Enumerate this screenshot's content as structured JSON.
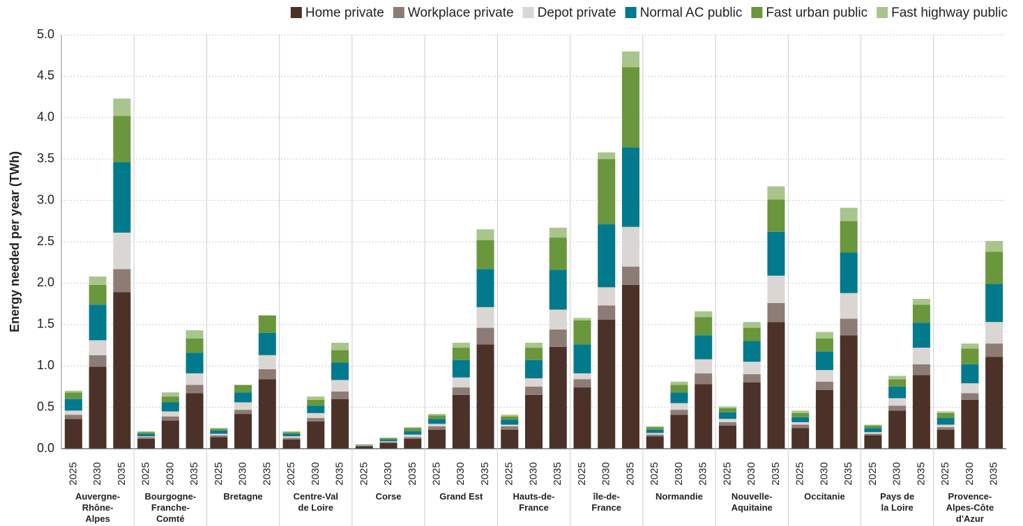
{
  "chart_data": {
    "type": "stacked_bar",
    "y_label": "Energy needed per year (TWh)",
    "categories": [
      "2025",
      "2030",
      "2035",
      "2025",
      "2030",
      "2035",
      "2025",
      "2030",
      "2035",
      "2025",
      "2030",
      "2035",
      "2025",
      "2030",
      "2035",
      "2025",
      "2030",
      "2035",
      "2025",
      "2030",
      "2035",
      "2025",
      "2030",
      "2035",
      "2025",
      "2030",
      "2035",
      "2025",
      "2030",
      "2035",
      "2025",
      "2030",
      "2035",
      "2025",
      "2030",
      "2035",
      "2025",
      "2030",
      "2035"
    ],
    "groups": [
      [
        "Auvergne-",
        "Rhône-",
        "Alpes"
      ],
      [
        "Bourgogne-",
        "Franche-",
        "Comté"
      ],
      [
        "Bretagne"
      ],
      [
        "Centre-Val",
        "de Loire"
      ],
      [
        "Corse"
      ],
      [
        "Grand Est"
      ],
      [
        "Hauts-de-",
        "France"
      ],
      [
        "île-de-",
        "France"
      ],
      [
        "Normandie"
      ],
      [
        "Nouvelle-",
        "Aquitaine"
      ],
      [
        "Occitanie"
      ],
      [
        "Pays de",
        "la Loire"
      ],
      [
        "Provence-",
        "Alpes-Côte",
        "d'Azur"
      ]
    ],
    "series": [
      {
        "name": "Home private",
        "color": "#4b3128",
        "values": [
          0.36,
          0.99,
          1.89,
          0.12,
          0.34,
          0.67,
          0.14,
          0.42,
          0.84,
          0.11,
          0.33,
          0.6,
          0.03,
          0.07,
          0.12,
          0.23,
          0.65,
          1.26,
          0.23,
          0.65,
          1.23,
          0.74,
          1.56,
          1.98,
          0.15,
          0.41,
          0.78,
          0.28,
          0.8,
          1.53,
          0.25,
          0.71,
          1.37,
          0.16,
          0.46,
          0.89,
          0.23,
          0.59,
          1.11
        ]
      },
      {
        "name": "Workplace private",
        "color": "#8d7c76",
        "values": [
          0.05,
          0.14,
          0.28,
          0.02,
          0.05,
          0.1,
          0.02,
          0.05,
          0.12,
          0.02,
          0.04,
          0.09,
          0.005,
          0.01,
          0.02,
          0.04,
          0.09,
          0.2,
          0.04,
          0.1,
          0.21,
          0.1,
          0.17,
          0.22,
          0.02,
          0.06,
          0.13,
          0.04,
          0.1,
          0.23,
          0.04,
          0.1,
          0.2,
          0.02,
          0.06,
          0.13,
          0.03,
          0.08,
          0.16
        ]
      },
      {
        "name": "Depot private",
        "color": "#dad6d4",
        "values": [
          0.05,
          0.18,
          0.44,
          0.01,
          0.06,
          0.14,
          0.02,
          0.09,
          0.17,
          0.02,
          0.06,
          0.14,
          0.005,
          0.01,
          0.03,
          0.03,
          0.12,
          0.25,
          0.02,
          0.1,
          0.24,
          0.07,
          0.22,
          0.48,
          0.02,
          0.08,
          0.17,
          0.04,
          0.15,
          0.33,
          0.03,
          0.14,
          0.31,
          0.02,
          0.09,
          0.2,
          0.03,
          0.12,
          0.26
        ]
      },
      {
        "name": "Normal AC public",
        "color": "#007a8c",
        "values": [
          0.14,
          0.43,
          0.85,
          0.03,
          0.11,
          0.25,
          0.04,
          0.12,
          0.27,
          0.03,
          0.09,
          0.21,
          0.005,
          0.02,
          0.04,
          0.06,
          0.21,
          0.46,
          0.06,
          0.22,
          0.48,
          0.35,
          0.76,
          0.96,
          0.04,
          0.13,
          0.29,
          0.08,
          0.25,
          0.53,
          0.06,
          0.22,
          0.49,
          0.05,
          0.14,
          0.3,
          0.08,
          0.23,
          0.46
        ]
      },
      {
        "name": "Fast urban public",
        "color": "#6a963c",
        "values": [
          0.08,
          0.24,
          0.56,
          0.02,
          0.07,
          0.17,
          0.02,
          0.09,
          0.21,
          0.02,
          0.07,
          0.15,
          0.005,
          0.02,
          0.04,
          0.04,
          0.15,
          0.35,
          0.04,
          0.15,
          0.39,
          0.29,
          0.79,
          0.97,
          0.03,
          0.09,
          0.22,
          0.05,
          0.16,
          0.39,
          0.05,
          0.16,
          0.38,
          0.03,
          0.09,
          0.22,
          0.06,
          0.19,
          0.39
        ]
      },
      {
        "name": "Fast highway public",
        "color": "#a9c58d",
        "values": [
          0.02,
          0.1,
          0.21,
          0.01,
          0.05,
          0.1,
          0.01,
          0,
          0,
          0.01,
          0.04,
          0.09,
          0,
          0,
          0.01,
          0.02,
          0.06,
          0.13,
          0.02,
          0.06,
          0.12,
          0.03,
          0.08,
          0.19,
          0.01,
          0.04,
          0.07,
          0.02,
          0.07,
          0.16,
          0.03,
          0.08,
          0.16,
          0.01,
          0.04,
          0.07,
          0.02,
          0.06,
          0.13
        ]
      }
    ],
    "ylim": [
      0,
      5
    ],
    "yticks": [
      {
        "value": 0,
        "label": "0.0"
      },
      0.5,
      {
        "value": 1,
        "label": "1.0"
      },
      1.5,
      {
        "value": 2,
        "label": "2.0"
      },
      2.5,
      {
        "value": 3,
        "label": "3.0"
      },
      3.5,
      {
        "value": 4,
        "label": "4.0"
      },
      4.5,
      {
        "value": 5,
        "label": "5.0"
      }
    ],
    "grid": true,
    "legend": "top-right"
  }
}
